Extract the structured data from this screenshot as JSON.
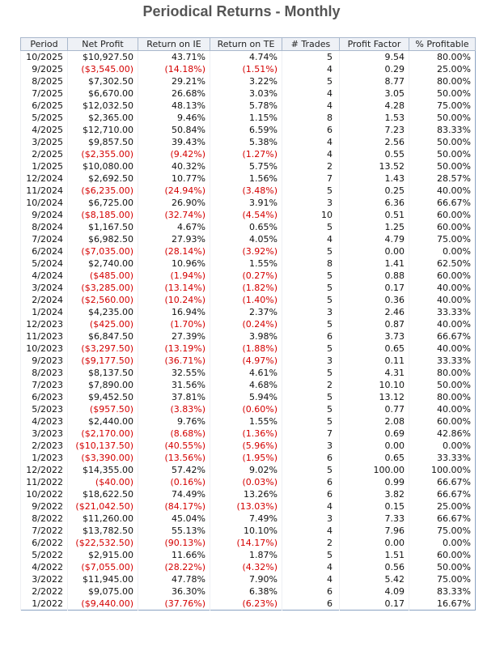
{
  "title": "Periodical Returns - Monthly",
  "table": {
    "header": [
      "Period",
      "Net Profit",
      "Return on IE",
      "Return on TE",
      "# Trades",
      "Profit Factor",
      "% Profitable"
    ],
    "rows": [
      [
        "10/2025",
        "$10,927.50",
        "43.71%",
        "4.74%",
        "5",
        "9.54",
        "80.00%"
      ],
      [
        "9/2025",
        "($3,545.00)",
        "(14.18%)",
        "(1.51%)",
        "4",
        "0.29",
        "25.00%"
      ],
      [
        "8/2025",
        "$7,302.50",
        "29.21%",
        "3.22%",
        "5",
        "8.77",
        "80.00%"
      ],
      [
        "7/2025",
        "$6,670.00",
        "26.68%",
        "3.03%",
        "4",
        "3.05",
        "50.00%"
      ],
      [
        "6/2025",
        "$12,032.50",
        "48.13%",
        "5.78%",
        "4",
        "4.28",
        "75.00%"
      ],
      [
        "5/2025",
        "$2,365.00",
        "9.46%",
        "1.15%",
        "8",
        "1.53",
        "50.00%"
      ],
      [
        "4/2025",
        "$12,710.00",
        "50.84%",
        "6.59%",
        "6",
        "7.23",
        "83.33%"
      ],
      [
        "3/2025",
        "$9,857.50",
        "39.43%",
        "5.38%",
        "4",
        "2.56",
        "50.00%"
      ],
      [
        "2/2025",
        "($2,355.00)",
        "(9.42%)",
        "(1.27%)",
        "4",
        "0.55",
        "50.00%"
      ],
      [
        "1/2025",
        "$10,080.00",
        "40.32%",
        "5.75%",
        "2",
        "13.52",
        "50.00%"
      ],
      [
        "12/2024",
        "$2,692.50",
        "10.77%",
        "1.56%",
        "7",
        "1.43",
        "28.57%"
      ],
      [
        "11/2024",
        "($6,235.00)",
        "(24.94%)",
        "(3.48%)",
        "5",
        "0.25",
        "40.00%"
      ],
      [
        "10/2024",
        "$6,725.00",
        "26.90%",
        "3.91%",
        "3",
        "6.36",
        "66.67%"
      ],
      [
        "9/2024",
        "($8,185.00)",
        "(32.74%)",
        "(4.54%)",
        "10",
        "0.51",
        "60.00%"
      ],
      [
        "8/2024",
        "$1,167.50",
        "4.67%",
        "0.65%",
        "5",
        "1.25",
        "60.00%"
      ],
      [
        "7/2024",
        "$6,982.50",
        "27.93%",
        "4.05%",
        "4",
        "4.79",
        "75.00%"
      ],
      [
        "6/2024",
        "($7,035.00)",
        "(28.14%)",
        "(3.92%)",
        "5",
        "0.00",
        "0.00%"
      ],
      [
        "5/2024",
        "$2,740.00",
        "10.96%",
        "1.55%",
        "8",
        "1.41",
        "62.50%"
      ],
      [
        "4/2024",
        "($485.00)",
        "(1.94%)",
        "(0.27%)",
        "5",
        "0.88",
        "60.00%"
      ],
      [
        "3/2024",
        "($3,285.00)",
        "(13.14%)",
        "(1.82%)",
        "5",
        "0.17",
        "40.00%"
      ],
      [
        "2/2024",
        "($2,560.00)",
        "(10.24%)",
        "(1.40%)",
        "5",
        "0.36",
        "40.00%"
      ],
      [
        "1/2024",
        "$4,235.00",
        "16.94%",
        "2.37%",
        "3",
        "2.46",
        "33.33%"
      ],
      [
        "12/2023",
        "($425.00)",
        "(1.70%)",
        "(0.24%)",
        "5",
        "0.87",
        "40.00%"
      ],
      [
        "11/2023",
        "$6,847.50",
        "27.39%",
        "3.98%",
        "6",
        "3.73",
        "66.67%"
      ],
      [
        "10/2023",
        "($3,297.50)",
        "(13.19%)",
        "(1.88%)",
        "5",
        "0.65",
        "40.00%"
      ],
      [
        "9/2023",
        "($9,177.50)",
        "(36.71%)",
        "(4.97%)",
        "3",
        "0.11",
        "33.33%"
      ],
      [
        "8/2023",
        "$8,137.50",
        "32.55%",
        "4.61%",
        "5",
        "4.31",
        "80.00%"
      ],
      [
        "7/2023",
        "$7,890.00",
        "31.56%",
        "4.68%",
        "2",
        "10.10",
        "50.00%"
      ],
      [
        "6/2023",
        "$9,452.50",
        "37.81%",
        "5.94%",
        "5",
        "13.12",
        "80.00%"
      ],
      [
        "5/2023",
        "($957.50)",
        "(3.83%)",
        "(0.60%)",
        "5",
        "0.77",
        "40.00%"
      ],
      [
        "4/2023",
        "$2,440.00",
        "9.76%",
        "1.55%",
        "5",
        "2.08",
        "60.00%"
      ],
      [
        "3/2023",
        "($2,170.00)",
        "(8.68%)",
        "(1.36%)",
        "7",
        "0.69",
        "42.86%"
      ],
      [
        "2/2023",
        "($10,137.50)",
        "(40.55%)",
        "(5.96%)",
        "3",
        "0.00",
        "0.00%"
      ],
      [
        "1/2023",
        "($3,390.00)",
        "(13.56%)",
        "(1.95%)",
        "6",
        "0.65",
        "33.33%"
      ],
      [
        "12/2022",
        "$14,355.00",
        "57.42%",
        "9.02%",
        "5",
        "100.00",
        "100.00%"
      ],
      [
        "11/2022",
        "($40.00)",
        "(0.16%)",
        "(0.03%)",
        "6",
        "0.99",
        "66.67%"
      ],
      [
        "10/2022",
        "$18,622.50",
        "74.49%",
        "13.26%",
        "6",
        "3.82",
        "66.67%"
      ],
      [
        "9/2022",
        "($21,042.50)",
        "(84.17%)",
        "(13.03%)",
        "4",
        "0.15",
        "25.00%"
      ],
      [
        "8/2022",
        "$11,260.00",
        "45.04%",
        "7.49%",
        "3",
        "7.33",
        "66.67%"
      ],
      [
        "7/2022",
        "$13,782.50",
        "55.13%",
        "10.10%",
        "4",
        "7.96",
        "75.00%"
      ],
      [
        "6/2022",
        "($22,532.50)",
        "(90.13%)",
        "(14.17%)",
        "2",
        "0.00",
        "0.00%"
      ],
      [
        "5/2022",
        "$2,915.00",
        "11.66%",
        "1.87%",
        "5",
        "1.51",
        "60.00%"
      ],
      [
        "4/2022",
        "($7,055.00)",
        "(28.22%)",
        "(4.32%)",
        "4",
        "0.56",
        "50.00%"
      ],
      [
        "3/2022",
        "$11,945.00",
        "47.78%",
        "7.90%",
        "4",
        "5.42",
        "75.00%"
      ],
      [
        "2/2022",
        "$9,075.00",
        "36.30%",
        "6.38%",
        "6",
        "4.09",
        "83.33%"
      ],
      [
        "1/2022",
        "($9,440.00)",
        "(37.76%)",
        "(6.23%)",
        "6",
        "0.17",
        "16.67%"
      ]
    ]
  }
}
